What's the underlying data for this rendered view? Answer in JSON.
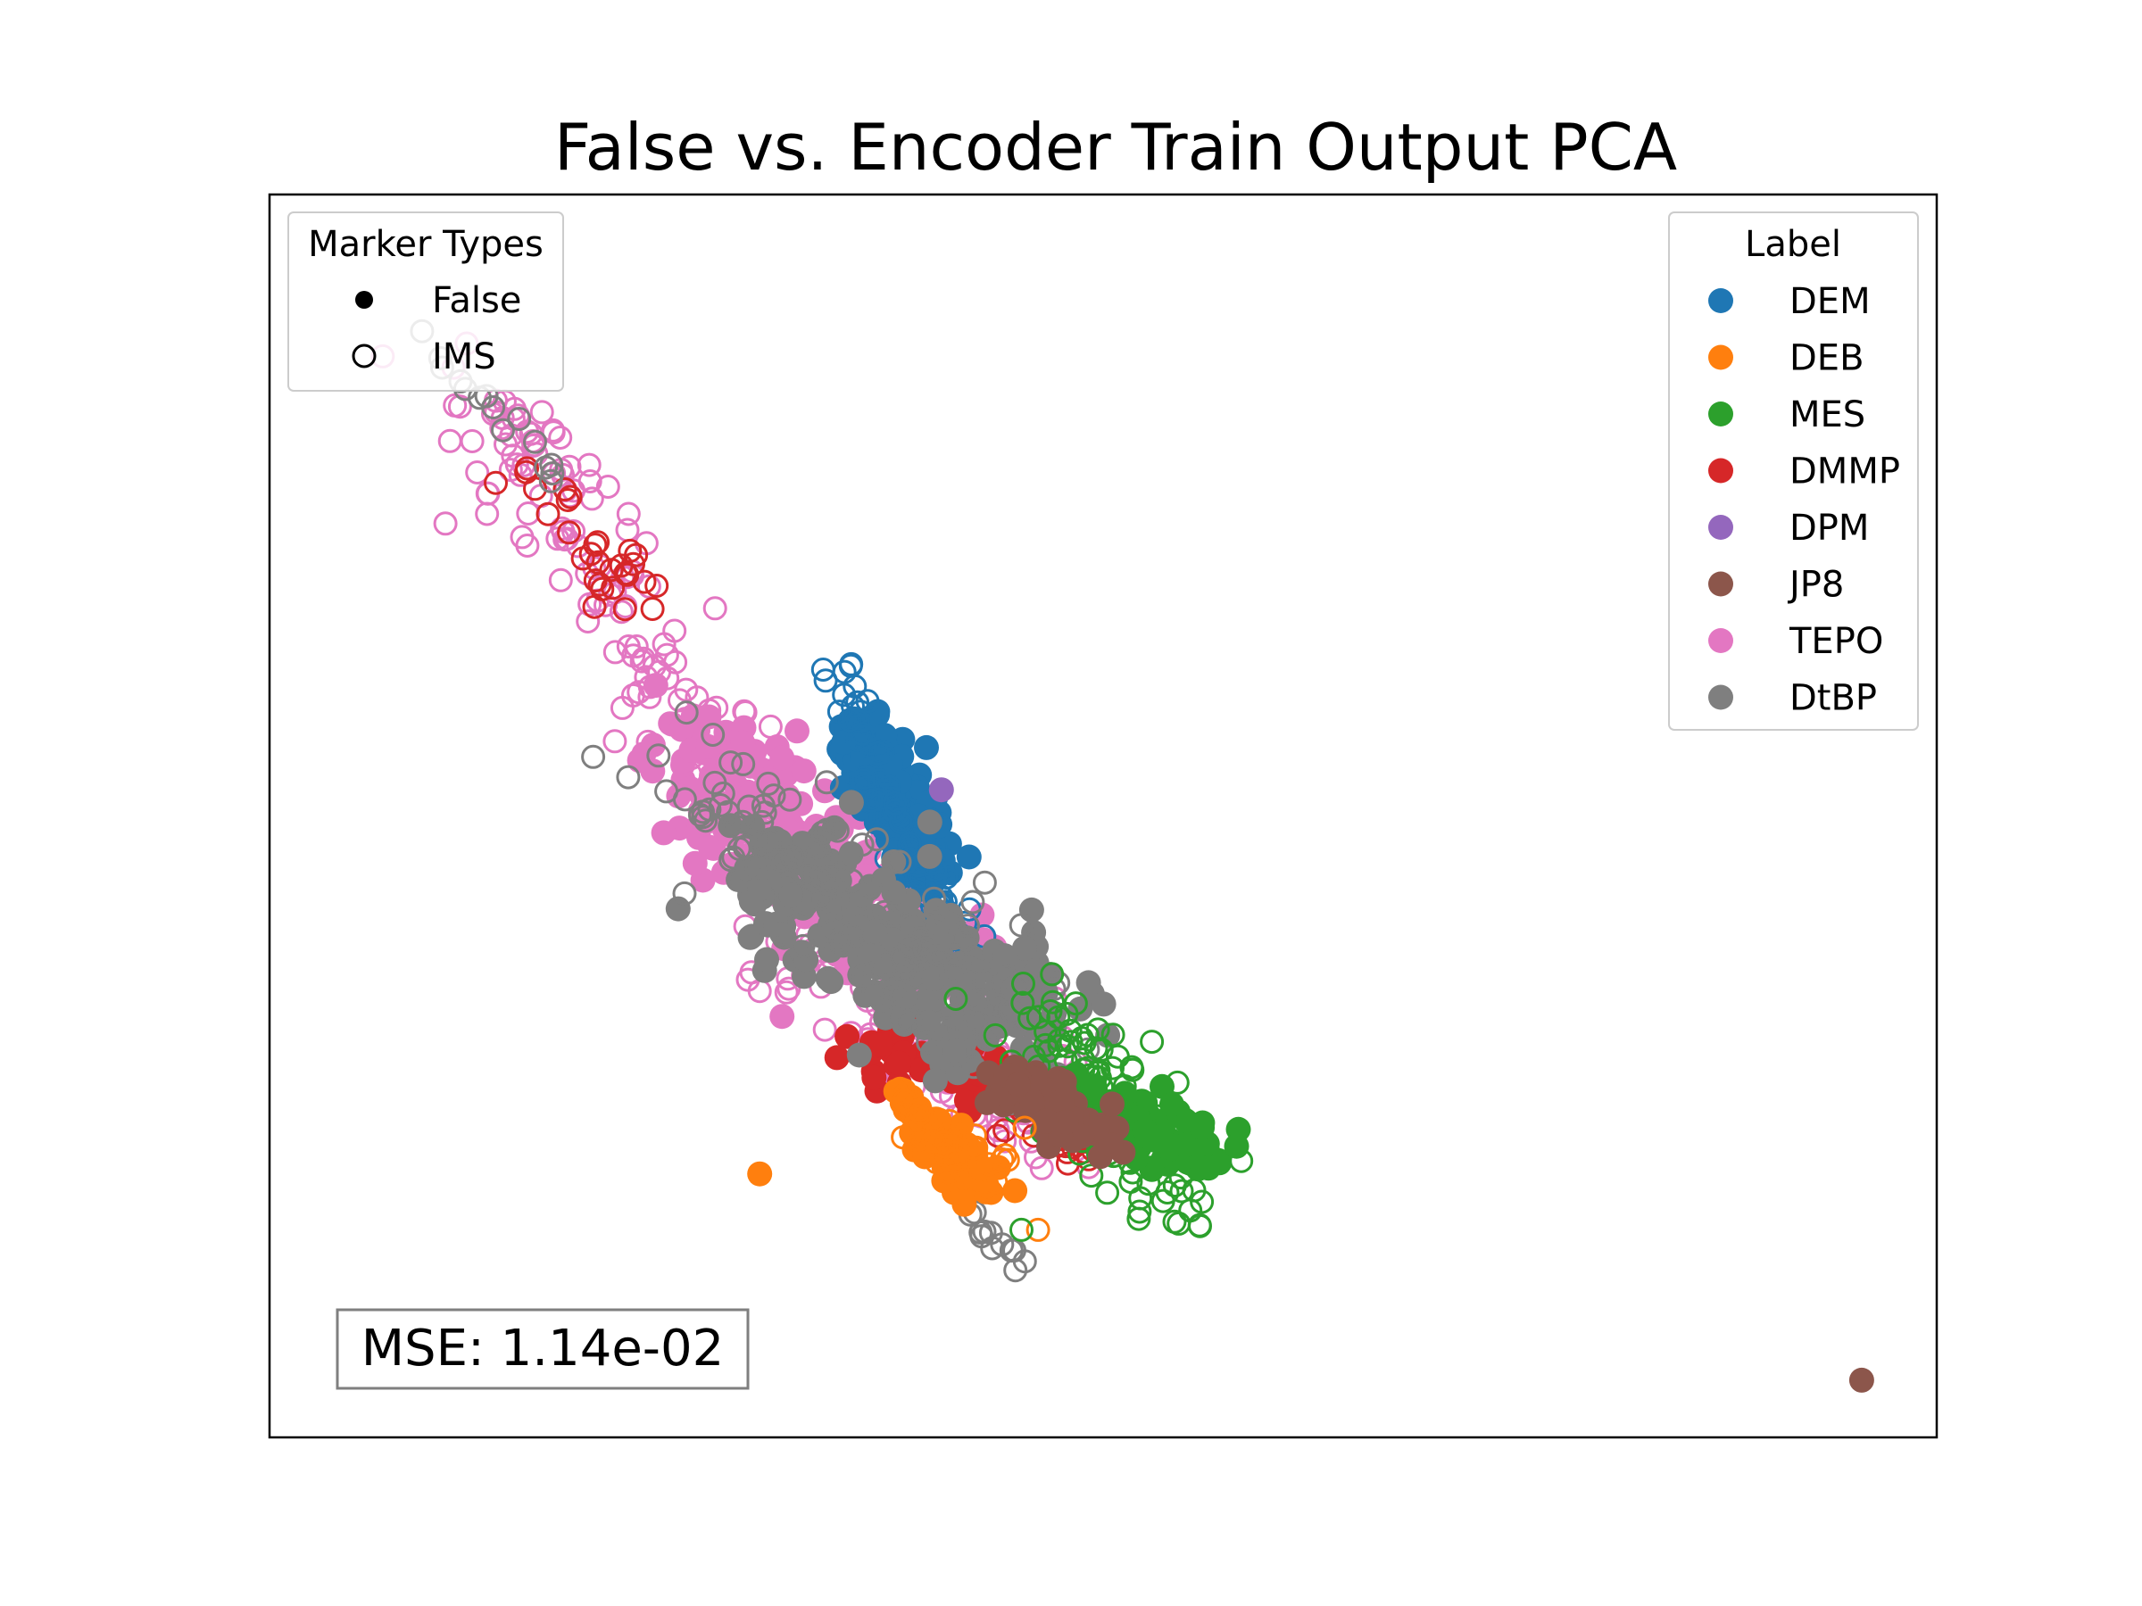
{
  "chart_data": {
    "type": "scatter",
    "title": "False vs. Encoder Train Output PCA",
    "xlabel": "",
    "ylabel": "",
    "axes_visible": false,
    "grid": false,
    "marker_legend": {
      "title": "Marker Types",
      "placement": "top-left",
      "entries": [
        {
          "label": "False",
          "marker": "filled"
        },
        {
          "label": "IMS",
          "marker": "hollow"
        }
      ]
    },
    "label_legend": {
      "title": "Label",
      "placement": "top-right",
      "entries": [
        {
          "label": "DEM",
          "color": "#1f77b4"
        },
        {
          "label": "DEB",
          "color": "#ff7f0e"
        },
        {
          "label": "MES",
          "color": "#2ca02c"
        },
        {
          "label": "DMMP",
          "color": "#d62728"
        },
        {
          "label": "DPM",
          "color": "#9467bd"
        },
        {
          "label": "JP8",
          "color": "#8c564b"
        },
        {
          "label": "TEPO",
          "color": "#e377c2"
        },
        {
          "label": "DtBP",
          "color": "#7f7f7f"
        }
      ]
    },
    "annotation": "MSE: 1.14e-02",
    "clusters": [
      {
        "label": "TEPO",
        "marker": "hollow",
        "x1": 0.12,
        "y1": 0.86,
        "x2": 0.27,
        "y2": 0.55,
        "spread": 0.025,
        "n": 120
      },
      {
        "label": "TEPO",
        "marker": "filled",
        "x1": 0.245,
        "y1": 0.56,
        "x2": 0.41,
        "y2": 0.36,
        "spread": 0.03,
        "n": 260
      },
      {
        "label": "TEPO",
        "marker": "hollow",
        "x1": 0.33,
        "y1": 0.42,
        "x2": 0.47,
        "y2": 0.24,
        "spread": 0.03,
        "n": 160
      },
      {
        "label": "DMMP",
        "marker": "hollow",
        "x1": 0.15,
        "y1": 0.78,
        "x2": 0.22,
        "y2": 0.66,
        "spread": 0.015,
        "n": 30
      },
      {
        "label": "DMMP",
        "marker": "filled",
        "x1": 0.35,
        "y1": 0.32,
        "x2": 0.45,
        "y2": 0.28,
        "spread": 0.015,
        "n": 60
      },
      {
        "label": "DMMP",
        "marker": "hollow",
        "x1": 0.45,
        "y1": 0.26,
        "x2": 0.5,
        "y2": 0.22,
        "spread": 0.01,
        "n": 25
      },
      {
        "label": "DEM",
        "marker": "filled",
        "x1": 0.355,
        "y1": 0.57,
        "x2": 0.4,
        "y2": 0.45,
        "spread": 0.012,
        "n": 220
      },
      {
        "label": "DEM",
        "marker": "hollow",
        "x1": 0.34,
        "y1": 0.63,
        "x2": 0.39,
        "y2": 0.42,
        "spread": 0.01,
        "n": 50
      },
      {
        "label": "DEM",
        "marker": "hollow",
        "x1": 0.38,
        "y1": 0.48,
        "x2": 0.42,
        "y2": 0.38,
        "spread": 0.01,
        "n": 40
      },
      {
        "label": "DtBP",
        "marker": "filled",
        "x1": 0.3,
        "y1": 0.46,
        "x2": 0.46,
        "y2": 0.32,
        "spread": 0.03,
        "n": 320
      },
      {
        "label": "DtBP",
        "marker": "hollow",
        "x1": 0.24,
        "y1": 0.54,
        "x2": 0.47,
        "y2": 0.31,
        "spread": 0.03,
        "n": 110
      },
      {
        "label": "DtBP",
        "marker": "hollow",
        "x1": 0.09,
        "y1": 0.89,
        "x2": 0.18,
        "y2": 0.76,
        "spread": 0.008,
        "n": 15
      },
      {
        "label": "DtBP",
        "marker": "hollow",
        "x1": 0.42,
        "y1": 0.18,
        "x2": 0.45,
        "y2": 0.14,
        "spread": 0.006,
        "n": 12
      },
      {
        "label": "MES",
        "marker": "hollow",
        "x1": 0.46,
        "y1": 0.34,
        "x2": 0.55,
        "y2": 0.19,
        "spread": 0.025,
        "n": 120
      },
      {
        "label": "MES",
        "marker": "filled",
        "x1": 0.48,
        "y1": 0.27,
        "x2": 0.56,
        "y2": 0.23,
        "spread": 0.015,
        "n": 100
      },
      {
        "label": "JP8",
        "marker": "filled",
        "x1": 0.44,
        "y1": 0.29,
        "x2": 0.5,
        "y2": 0.24,
        "spread": 0.012,
        "n": 90
      },
      {
        "label": "DEB",
        "marker": "filled",
        "x1": 0.38,
        "y1": 0.27,
        "x2": 0.43,
        "y2": 0.2,
        "spread": 0.01,
        "n": 110
      },
      {
        "label": "DEB",
        "marker": "hollow",
        "x1": 0.38,
        "y1": 0.26,
        "x2": 0.44,
        "y2": 0.21,
        "spread": 0.012,
        "n": 30
      }
    ],
    "points": [
      {
        "label": "DEM",
        "marker": "filled",
        "x": 0.394,
        "y": 0.555
      },
      {
        "label": "DPM",
        "marker": "filled",
        "x": 0.403,
        "y": 0.521
      },
      {
        "label": "DEB",
        "marker": "filled",
        "x": 0.294,
        "y": 0.212
      },
      {
        "label": "DEB",
        "marker": "hollow",
        "x": 0.461,
        "y": 0.167
      },
      {
        "label": "MES",
        "marker": "hollow",
        "x": 0.451,
        "y": 0.167
      },
      {
        "label": "JP8",
        "marker": "filled",
        "x": 0.955,
        "y": 0.046
      }
    ]
  }
}
